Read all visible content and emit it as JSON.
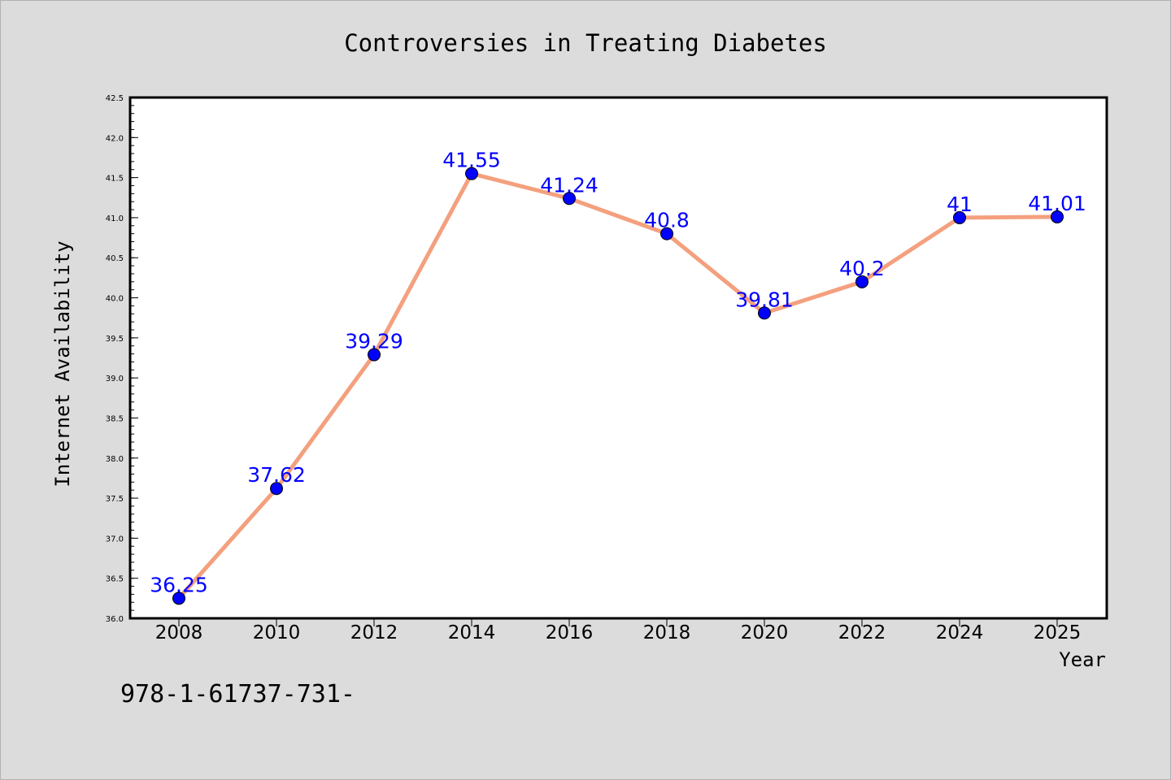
{
  "chart_data": {
    "type": "line",
    "title": "Controversies in Treating Diabetes",
    "xlabel": "Year",
    "ylabel": "Internet Availability",
    "x": [
      "2008",
      "2010",
      "2012",
      "2014",
      "2016",
      "2018",
      "2020",
      "2022",
      "2024",
      "2025"
    ],
    "series": [
      {
        "values": [
          36.25,
          37.62,
          39.29,
          41.55,
          41.24,
          40.8,
          39.81,
          40.2,
          41,
          41.01
        ],
        "labels": [
          "36.25",
          "37.62",
          "39.29",
          "41.55",
          "41.24",
          "40.8",
          "39.81",
          "40.2",
          "41",
          "41.01"
        ],
        "line_color": "#f4a07e",
        "marker_color": "#0000ff"
      }
    ],
    "ylim": [
      36.0,
      42.5
    ],
    "yticks": [
      "36.0",
      "36.5",
      "37.0",
      "37.5",
      "38.0",
      "38.5",
      "39.0",
      "39.5",
      "40.0",
      "40.5",
      "41.0",
      "41.5",
      "42.0",
      "42.5"
    ],
    "grid": false,
    "label_color": "#0000ff"
  },
  "footer_text": "978-1-61737-731-"
}
